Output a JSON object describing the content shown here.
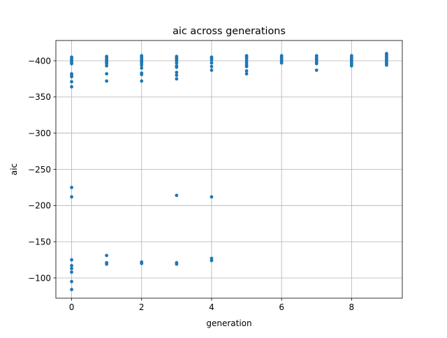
{
  "chart_data": {
    "type": "scatter",
    "title": "aic across generations",
    "xlabel": "generation",
    "ylabel": "aic",
    "xlim": [
      -0.45,
      9.45
    ],
    "ylim": [
      -72,
      -428
    ],
    "x_ticks": [
      0,
      2,
      4,
      6,
      8
    ],
    "y_ticks": [
      -400,
      -350,
      -300,
      -250,
      -200,
      -150,
      -100
    ],
    "x_tick_labels": [
      "0",
      "2",
      "4",
      "6",
      "8"
    ],
    "y_tick_labels": [
      "−400",
      "−350",
      "−300",
      "−250",
      "−200",
      "−150",
      "−100"
    ],
    "y_axis_inverted": true,
    "grid": true,
    "marker_color": "#1f77b4",
    "series": [
      {
        "points": [
          {
            "x": 0,
            "y": -405
          },
          {
            "x": 0,
            "y": -403
          },
          {
            "x": 0,
            "y": -401
          },
          {
            "x": 0,
            "y": -399
          },
          {
            "x": 0,
            "y": -397
          },
          {
            "x": 0,
            "y": -396
          },
          {
            "x": 0,
            "y": -382
          },
          {
            "x": 0,
            "y": -380
          },
          {
            "x": 0,
            "y": -378
          },
          {
            "x": 0,
            "y": -371
          },
          {
            "x": 0,
            "y": -364
          },
          {
            "x": 0,
            "y": -225
          },
          {
            "x": 0,
            "y": -212
          },
          {
            "x": 0,
            "y": -125
          },
          {
            "x": 0,
            "y": -117
          },
          {
            "x": 0,
            "y": -113
          },
          {
            "x": 0,
            "y": -108
          },
          {
            "x": 0,
            "y": -95
          },
          {
            "x": 0,
            "y": -84
          },
          {
            "x": 1,
            "y": -406
          },
          {
            "x": 1,
            "y": -404
          },
          {
            "x": 1,
            "y": -402
          },
          {
            "x": 1,
            "y": -400
          },
          {
            "x": 1,
            "y": -398
          },
          {
            "x": 1,
            "y": -396
          },
          {
            "x": 1,
            "y": -393
          },
          {
            "x": 1,
            "y": -382
          },
          {
            "x": 1,
            "y": -372
          },
          {
            "x": 1,
            "y": -131
          },
          {
            "x": 1,
            "y": -121
          },
          {
            "x": 1,
            "y": -119
          },
          {
            "x": 2,
            "y": -407
          },
          {
            "x": 2,
            "y": -405
          },
          {
            "x": 2,
            "y": -403
          },
          {
            "x": 2,
            "y": -401
          },
          {
            "x": 2,
            "y": -399
          },
          {
            "x": 2,
            "y": -397
          },
          {
            "x": 2,
            "y": -394
          },
          {
            "x": 2,
            "y": -390
          },
          {
            "x": 2,
            "y": -383
          },
          {
            "x": 2,
            "y": -381
          },
          {
            "x": 2,
            "y": -372
          },
          {
            "x": 2,
            "y": -122
          },
          {
            "x": 2,
            "y": -120
          },
          {
            "x": 3,
            "y": -406
          },
          {
            "x": 3,
            "y": -404
          },
          {
            "x": 3,
            "y": -402
          },
          {
            "x": 3,
            "y": -400
          },
          {
            "x": 3,
            "y": -397
          },
          {
            "x": 3,
            "y": -393
          },
          {
            "x": 3,
            "y": -391
          },
          {
            "x": 3,
            "y": -384
          },
          {
            "x": 3,
            "y": -380
          },
          {
            "x": 3,
            "y": -375
          },
          {
            "x": 3,
            "y": -214
          },
          {
            "x": 3,
            "y": -121
          },
          {
            "x": 3,
            "y": -119
          },
          {
            "x": 4,
            "y": -405
          },
          {
            "x": 4,
            "y": -403
          },
          {
            "x": 4,
            "y": -401
          },
          {
            "x": 4,
            "y": -397
          },
          {
            "x": 4,
            "y": -392
          },
          {
            "x": 4,
            "y": -387
          },
          {
            "x": 4,
            "y": -212
          },
          {
            "x": 4,
            "y": -127
          },
          {
            "x": 4,
            "y": -124
          },
          {
            "x": 5,
            "y": -407
          },
          {
            "x": 5,
            "y": -405
          },
          {
            "x": 5,
            "y": -403
          },
          {
            "x": 5,
            "y": -400
          },
          {
            "x": 5,
            "y": -397
          },
          {
            "x": 5,
            "y": -394
          },
          {
            "x": 5,
            "y": -392
          },
          {
            "x": 5,
            "y": -386
          },
          {
            "x": 5,
            "y": -382
          },
          {
            "x": 6,
            "y": -407
          },
          {
            "x": 6,
            "y": -405
          },
          {
            "x": 6,
            "y": -403
          },
          {
            "x": 6,
            "y": -401
          },
          {
            "x": 6,
            "y": -399
          },
          {
            "x": 6,
            "y": -397
          },
          {
            "x": 7,
            "y": -407
          },
          {
            "x": 7,
            "y": -405
          },
          {
            "x": 7,
            "y": -403
          },
          {
            "x": 7,
            "y": -401
          },
          {
            "x": 7,
            "y": -398
          },
          {
            "x": 7,
            "y": -396
          },
          {
            "x": 7,
            "y": -387
          },
          {
            "x": 8,
            "y": -407
          },
          {
            "x": 8,
            "y": -405
          },
          {
            "x": 8,
            "y": -403
          },
          {
            "x": 8,
            "y": -401
          },
          {
            "x": 8,
            "y": -399
          },
          {
            "x": 8,
            "y": -397
          },
          {
            "x": 8,
            "y": -395
          },
          {
            "x": 8,
            "y": -393
          },
          {
            "x": 9,
            "y": -410
          },
          {
            "x": 9,
            "y": -408
          },
          {
            "x": 9,
            "y": -406
          },
          {
            "x": 9,
            "y": -404
          },
          {
            "x": 9,
            "y": -402
          },
          {
            "x": 9,
            "y": -400
          },
          {
            "x": 9,
            "y": -398
          },
          {
            "x": 9,
            "y": -396
          },
          {
            "x": 9,
            "y": -394
          }
        ]
      }
    ]
  }
}
